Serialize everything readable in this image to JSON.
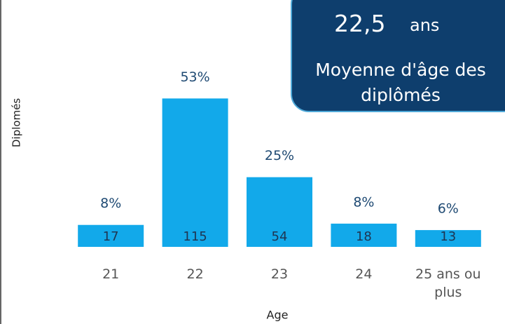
{
  "chart_data": {
    "type": "bar",
    "categories": [
      "21",
      "22",
      "23",
      "24",
      "25 ans ou plus"
    ],
    "values": [
      17,
      115,
      54,
      18,
      13
    ],
    "percent_labels": [
      "8%",
      "53%",
      "25%",
      "8%",
      "6%"
    ],
    "color": "#12a9ea",
    "ylim": [
      0,
      125
    ],
    "x_label": "Age",
    "y_label": "Diplomés",
    "highlight": {
      "value": "22,5",
      "unit": "ans",
      "caption": "Moyenne d'âge des diplômés"
    }
  }
}
